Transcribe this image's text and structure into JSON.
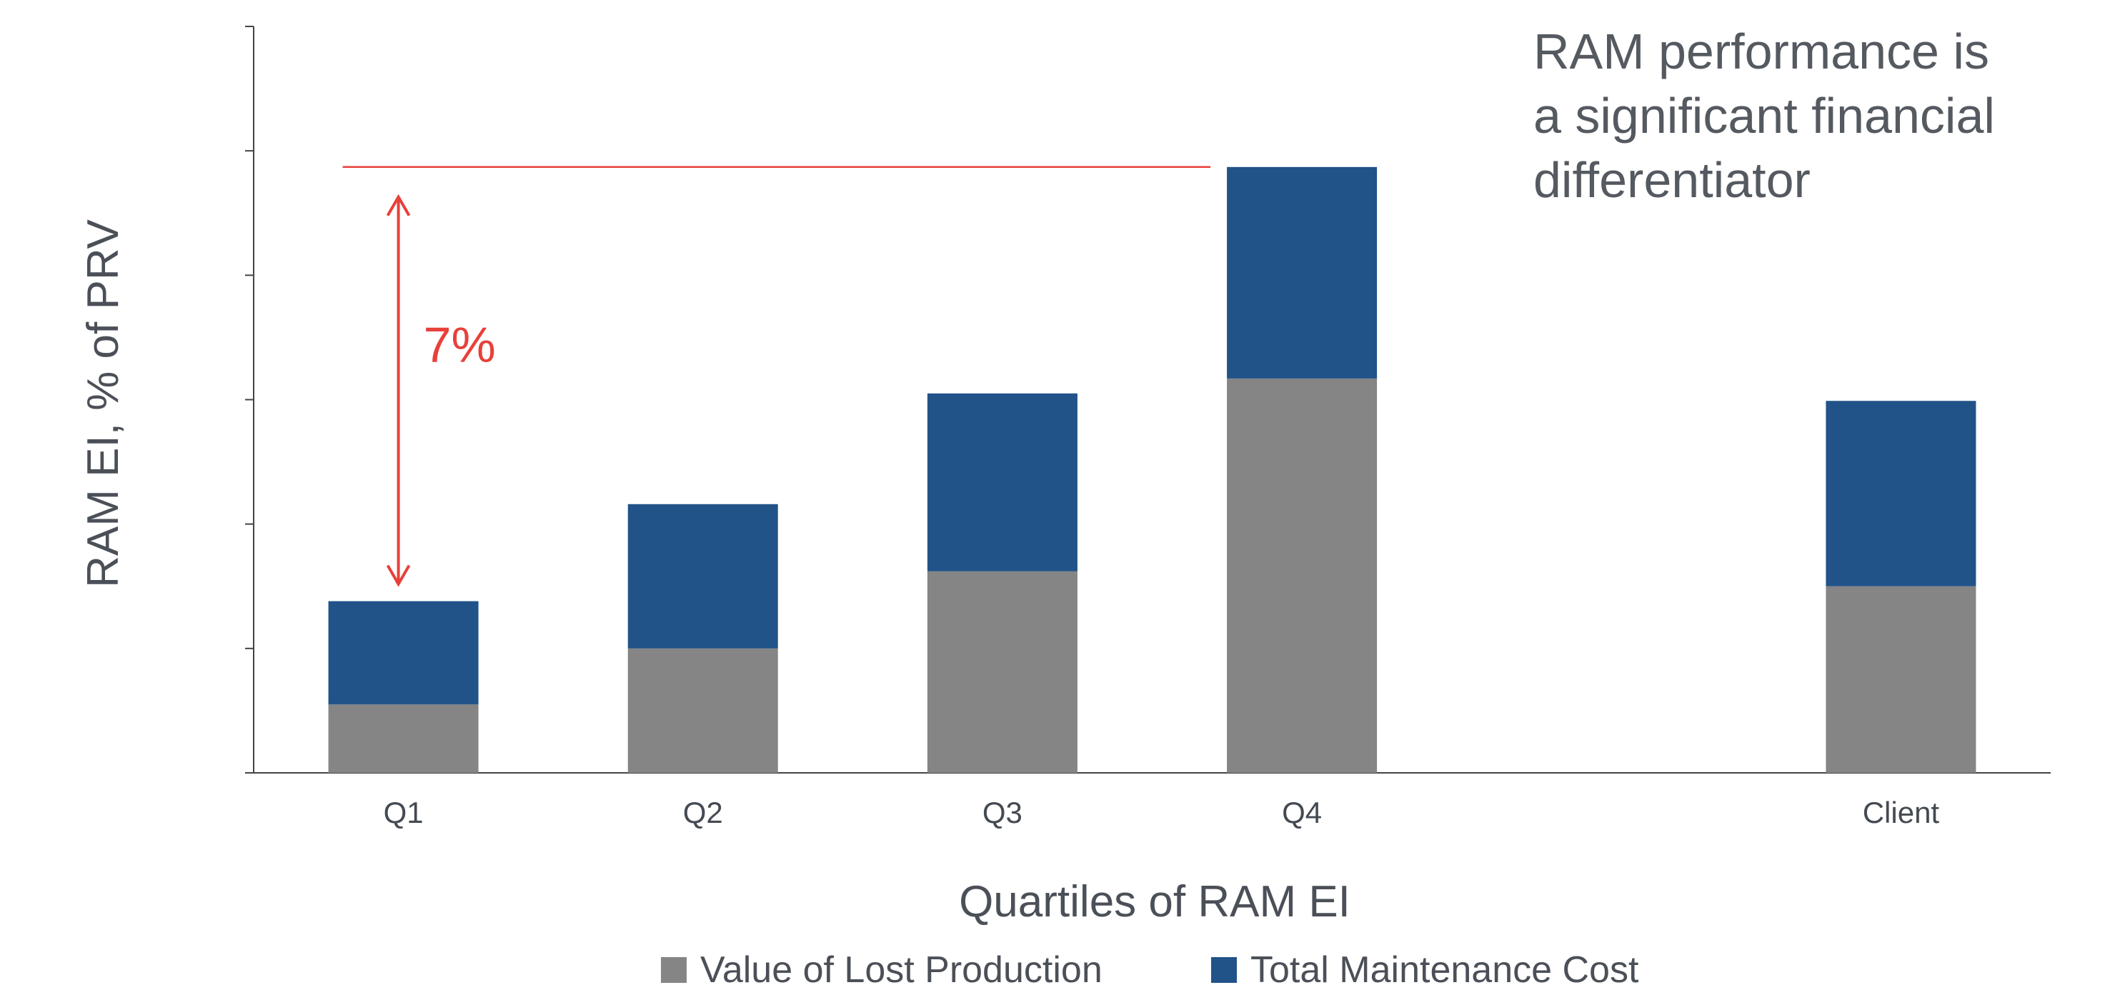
{
  "chart_data": {
    "type": "bar",
    "stacked": true,
    "categories": [
      "Q1",
      "Q2",
      "Q3",
      "Q4",
      "Client"
    ],
    "series": [
      {
        "name": "Value of Lost Production",
        "color": "#858585",
        "values": [
          0.55,
          1.0,
          1.62,
          3.17,
          1.5
        ]
      },
      {
        "name": "Total Maintenance Cost",
        "color": "#215388",
        "values": [
          0.83,
          1.16,
          1.43,
          1.7,
          1.49
        ]
      }
    ],
    "title": "RAM performance is a significant financial differentiator",
    "title_lines": [
      "RAM performance is",
      "a significant financial",
      "differentiator"
    ],
    "xlabel": "Quartiles of RAM EI",
    "ylabel": "RAM EI, % of PRV",
    "ylim": [
      0,
      6
    ],
    "ytick_labels_shown": false,
    "grid": false,
    "legend_position": "bottom-center",
    "annotation": {
      "label": "7%",
      "color": "#e8403a",
      "from_category": "Q1",
      "to_category": "Q4"
    }
  }
}
